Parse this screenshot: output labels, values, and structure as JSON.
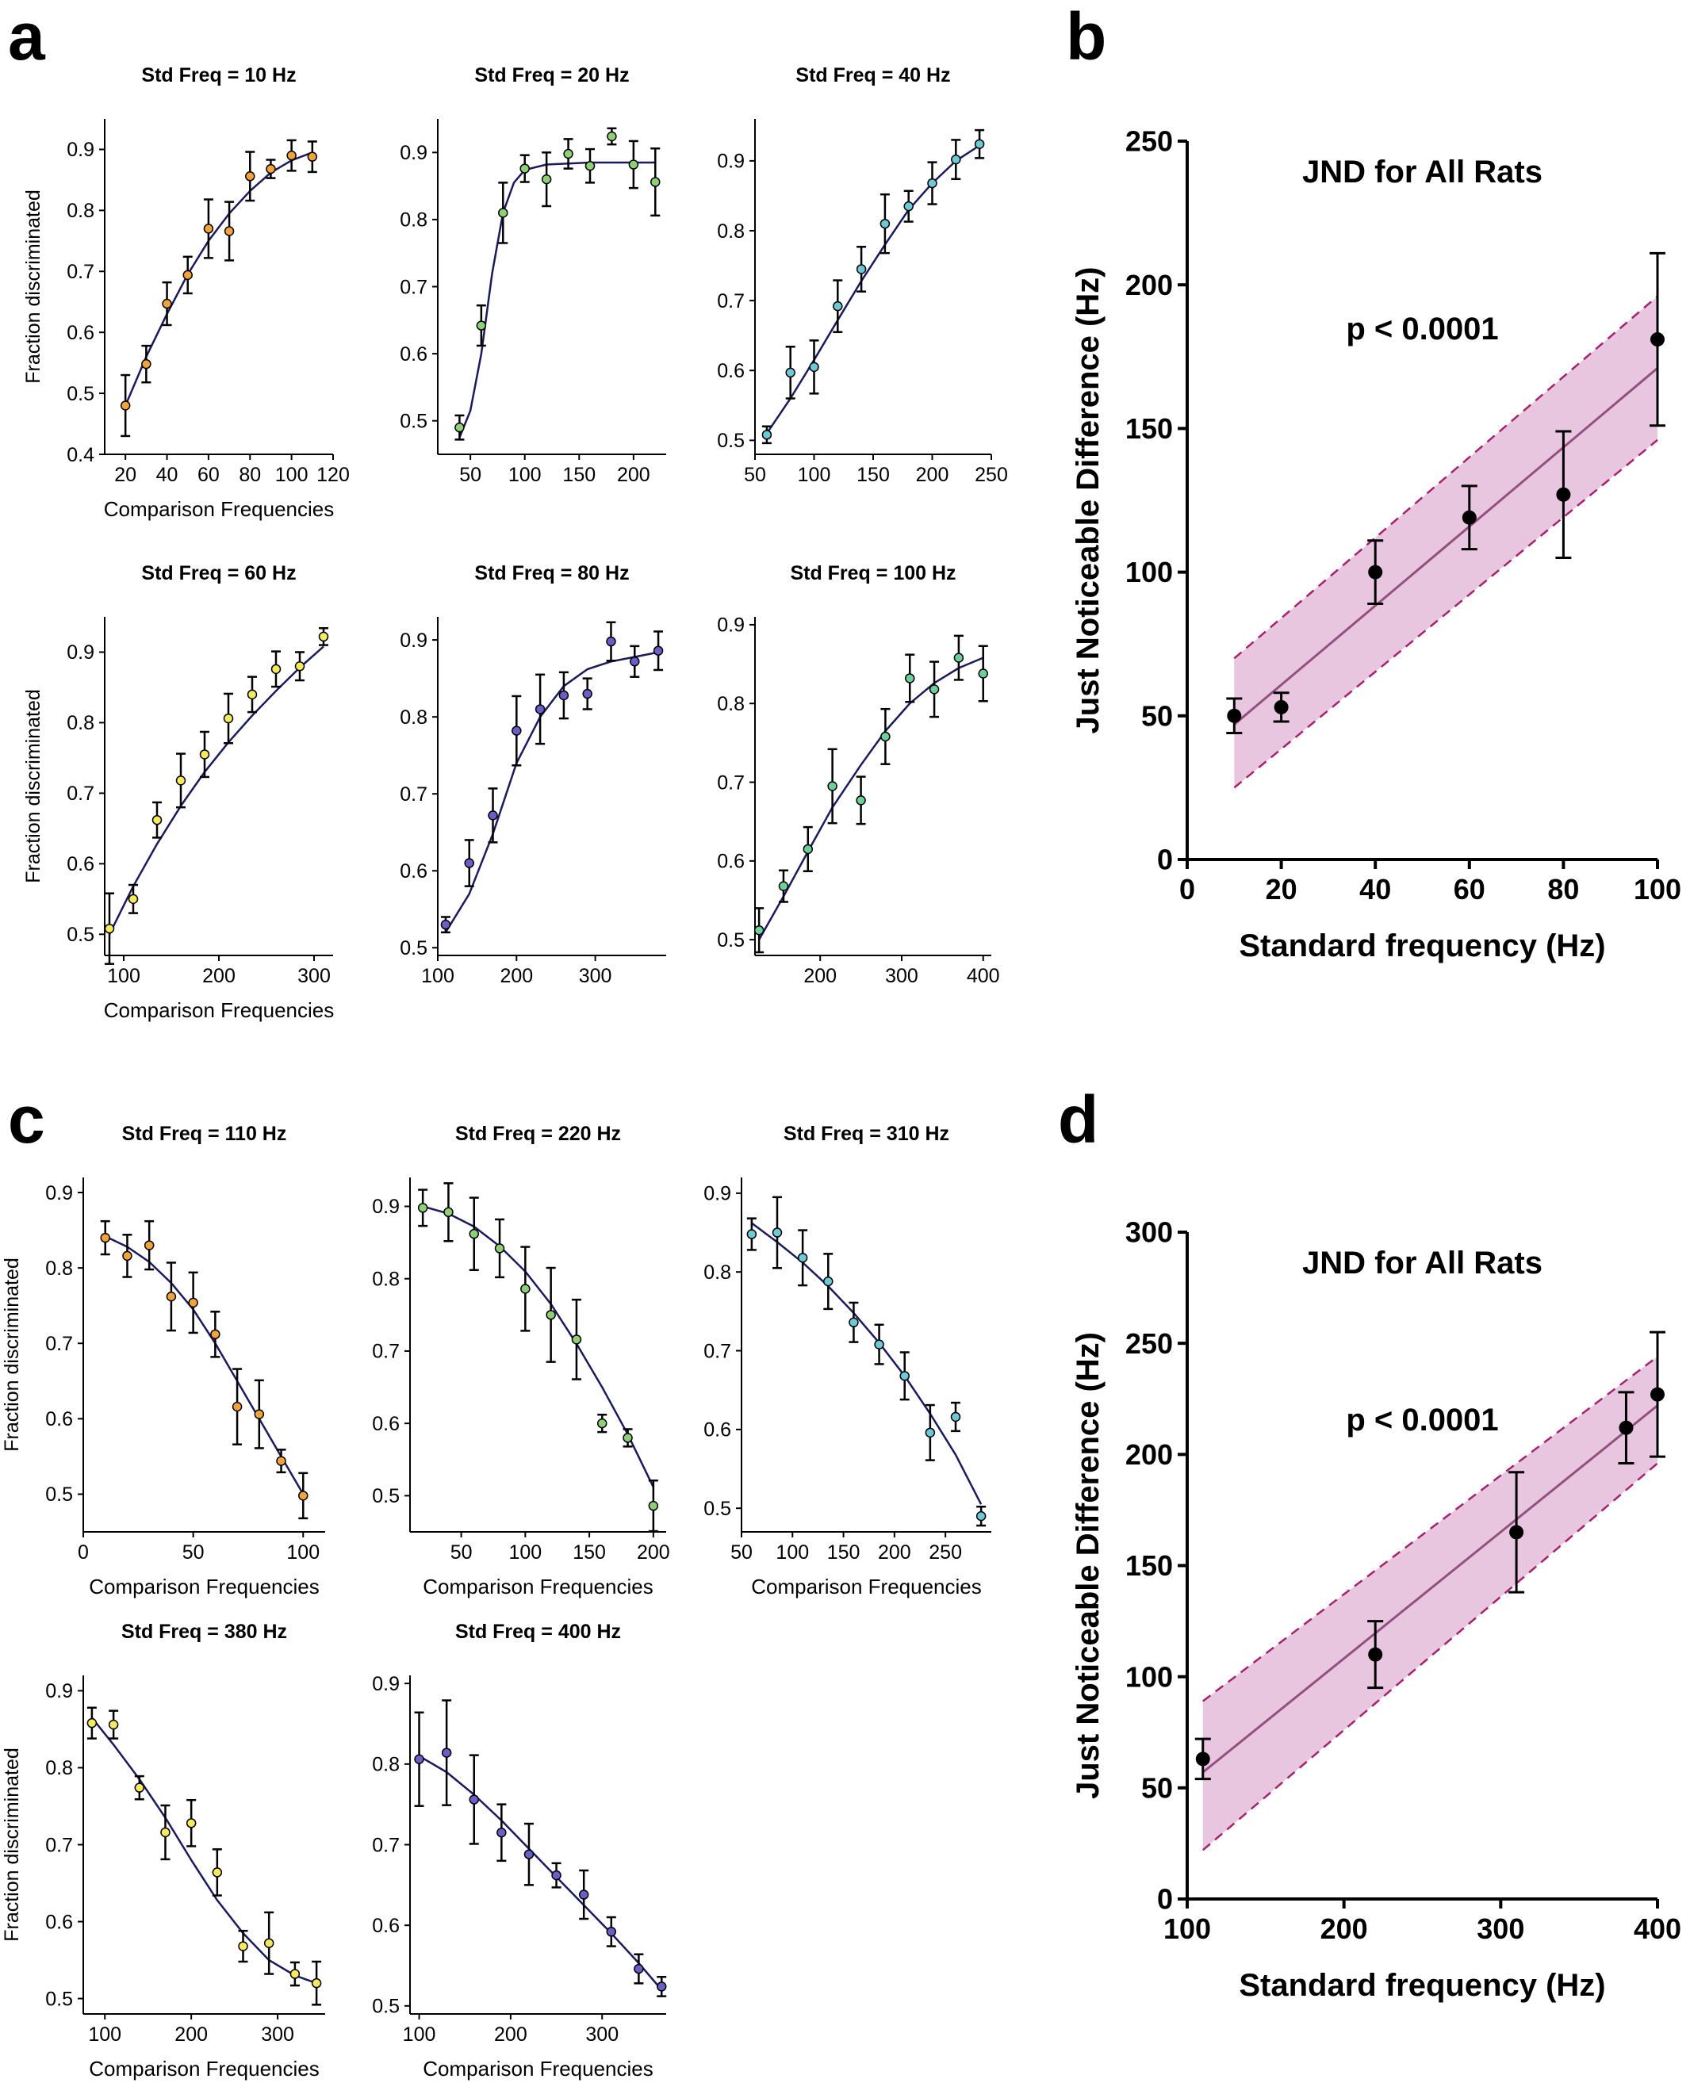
{
  "panel_labels": {
    "a": "a",
    "b": "b",
    "c": "c",
    "d": "d"
  },
  "chart_data": [
    {
      "panel": "a",
      "type": "scatter",
      "title": "Std Freq = 10 Hz",
      "xlabel": "Comparison Frequencies",
      "ylabel": "Fraction discriminated",
      "xlim": [
        10,
        120
      ],
      "ylim": [
        0.4,
        0.95
      ],
      "xticks": [
        20,
        40,
        60,
        80,
        100,
        120
      ],
      "yticks": [
        0.4,
        0.5,
        0.6,
        0.7,
        0.8,
        0.9
      ],
      "marker_color": "#f2a43a",
      "x": [
        20,
        30,
        40,
        50,
        60,
        70,
        80,
        90,
        100,
        110
      ],
      "y": [
        0.48,
        0.548,
        0.647,
        0.694,
        0.77,
        0.766,
        0.856,
        0.868,
        0.89,
        0.888
      ],
      "err": [
        0.05,
        0.03,
        0.035,
        0.03,
        0.048,
        0.048,
        0.04,
        0.015,
        0.025,
        0.025
      ],
      "fit": [
        [
          20,
          0.48
        ],
        [
          30,
          0.56
        ],
        [
          40,
          0.63
        ],
        [
          50,
          0.695
        ],
        [
          60,
          0.75
        ],
        [
          70,
          0.795
        ],
        [
          80,
          0.832
        ],
        [
          90,
          0.862
        ],
        [
          100,
          0.882
        ],
        [
          110,
          0.895
        ]
      ]
    },
    {
      "panel": "a",
      "type": "scatter",
      "title": "Std Freq = 20 Hz",
      "xlabel": "",
      "ylabel": "",
      "xlim": [
        20,
        230
      ],
      "ylim": [
        0.45,
        0.95
      ],
      "xticks": [
        50,
        100,
        150,
        200
      ],
      "yticks": [
        0.5,
        0.6,
        0.7,
        0.8,
        0.9
      ],
      "marker_color": "#8fcf78",
      "x": [
        40,
        60,
        80,
        100,
        120,
        140,
        160,
        180,
        200,
        220
      ],
      "y": [
        0.49,
        0.642,
        0.81,
        0.876,
        0.86,
        0.898,
        0.88,
        0.924,
        0.882,
        0.856
      ],
      "err": [
        0.018,
        0.03,
        0.045,
        0.02,
        0.04,
        0.022,
        0.025,
        0.012,
        0.035,
        0.05
      ],
      "fit": [
        [
          40,
          0.475
        ],
        [
          50,
          0.515
        ],
        [
          60,
          0.6
        ],
        [
          70,
          0.72
        ],
        [
          80,
          0.81
        ],
        [
          90,
          0.855
        ],
        [
          100,
          0.874
        ],
        [
          120,
          0.882
        ],
        [
          160,
          0.885
        ],
        [
          220,
          0.885
        ]
      ]
    },
    {
      "panel": "a",
      "type": "scatter",
      "title": "Std Freq = 40 Hz",
      "xlabel": "",
      "ylabel": "",
      "xlim": [
        50,
        250
      ],
      "ylim": [
        0.48,
        0.96
      ],
      "xticks": [
        50,
        100,
        150,
        200,
        250
      ],
      "yticks": [
        0.5,
        0.6,
        0.7,
        0.8,
        0.9
      ],
      "marker_color": "#6ec9d6",
      "x": [
        60,
        80,
        100,
        120,
        140,
        160,
        180,
        200,
        220,
        240
      ],
      "y": [
        0.508,
        0.597,
        0.605,
        0.692,
        0.745,
        0.81,
        0.835,
        0.868,
        0.902,
        0.924
      ],
      "err": [
        0.012,
        0.037,
        0.038,
        0.037,
        0.032,
        0.042,
        0.022,
        0.03,
        0.028,
        0.02
      ],
      "fit": [
        [
          60,
          0.51
        ],
        [
          80,
          0.56
        ],
        [
          100,
          0.615
        ],
        [
          120,
          0.672
        ],
        [
          140,
          0.728
        ],
        [
          160,
          0.78
        ],
        [
          180,
          0.83
        ],
        [
          200,
          0.868
        ],
        [
          220,
          0.9
        ],
        [
          240,
          0.922
        ]
      ]
    },
    {
      "panel": "a",
      "type": "scatter",
      "title": "Std Freq = 60 Hz",
      "xlabel": "Comparison Frequencies",
      "ylabel": "Fraction discriminated",
      "xlim": [
        80,
        320
      ],
      "ylim": [
        0.47,
        0.95
      ],
      "xticks": [
        100,
        200,
        300
      ],
      "yticks": [
        0.5,
        0.6,
        0.7,
        0.8,
        0.9
      ],
      "marker_color": "#f5e960",
      "x": [
        85,
        110,
        135,
        160,
        185,
        210,
        235,
        260,
        285,
        310
      ],
      "y": [
        0.508,
        0.55,
        0.662,
        0.718,
        0.755,
        0.806,
        0.84,
        0.876,
        0.88,
        0.922
      ],
      "err": [
        0.05,
        0.02,
        0.025,
        0.038,
        0.032,
        0.035,
        0.025,
        0.025,
        0.02,
        0.012
      ],
      "fit": [
        [
          85,
          0.5
        ],
        [
          110,
          0.568
        ],
        [
          135,
          0.628
        ],
        [
          160,
          0.682
        ],
        [
          185,
          0.73
        ],
        [
          210,
          0.772
        ],
        [
          235,
          0.81
        ],
        [
          260,
          0.845
        ],
        [
          285,
          0.878
        ],
        [
          310,
          0.908
        ]
      ]
    },
    {
      "panel": "a",
      "type": "scatter",
      "title": "Std Freq = 80 Hz",
      "xlabel": "",
      "ylabel": "",
      "xlim": [
        100,
        390
      ],
      "ylim": [
        0.49,
        0.93
      ],
      "xticks": [
        100,
        200,
        300
      ],
      "yticks": [
        0.5,
        0.6,
        0.7,
        0.8,
        0.9
      ],
      "marker_color": "#6a5ec9",
      "x": [
        110,
        140,
        170,
        200,
        230,
        260,
        290,
        320,
        350,
        380
      ],
      "y": [
        0.53,
        0.61,
        0.672,
        0.782,
        0.81,
        0.828,
        0.83,
        0.898,
        0.872,
        0.886
      ],
      "err": [
        0.01,
        0.03,
        0.035,
        0.045,
        0.045,
        0.03,
        0.02,
        0.025,
        0.02,
        0.025
      ],
      "fit": [
        [
          110,
          0.52
        ],
        [
          140,
          0.57
        ],
        [
          170,
          0.648
        ],
        [
          200,
          0.74
        ],
        [
          230,
          0.8
        ],
        [
          260,
          0.84
        ],
        [
          290,
          0.862
        ],
        [
          320,
          0.872
        ],
        [
          350,
          0.878
        ],
        [
          380,
          0.884
        ]
      ]
    },
    {
      "panel": "a",
      "type": "scatter",
      "title": "Std Freq = 100 Hz",
      "xlabel": "",
      "ylabel": "",
      "xlim": [
        120,
        410
      ],
      "ylim": [
        0.48,
        0.91
      ],
      "xticks": [
        200,
        300,
        400
      ],
      "yticks": [
        0.5,
        0.6,
        0.7,
        0.8,
        0.9
      ],
      "marker_color": "#6ccf9c",
      "x": [
        125,
        155,
        185,
        215,
        250,
        280,
        310,
        340,
        370,
        400
      ],
      "y": [
        0.512,
        0.568,
        0.615,
        0.695,
        0.677,
        0.758,
        0.832,
        0.818,
        0.858,
        0.838
      ],
      "err": [
        0.028,
        0.02,
        0.028,
        0.047,
        0.03,
        0.035,
        0.03,
        0.035,
        0.028,
        0.035
      ],
      "fit": [
        [
          125,
          0.5
        ],
        [
          155,
          0.555
        ],
        [
          185,
          0.612
        ],
        [
          215,
          0.668
        ],
        [
          250,
          0.722
        ],
        [
          280,
          0.765
        ],
        [
          310,
          0.8
        ],
        [
          340,
          0.826
        ],
        [
          370,
          0.845
        ],
        [
          400,
          0.858
        ]
      ]
    },
    {
      "panel": "b",
      "type": "scatter",
      "title": "JND for All Rats",
      "annotation": "p < 0.0001",
      "xlabel": "Standard frequency (Hz)",
      "ylabel": "Just Noticeable Difference (Hz)",
      "xlim": [
        0,
        100
      ],
      "ylim": [
        0,
        250
      ],
      "xticks": [
        0,
        20,
        40,
        60,
        80,
        100
      ],
      "yticks": [
        0,
        50,
        100,
        150,
        200,
        250
      ],
      "x": [
        10,
        20,
        40,
        60,
        80,
        100
      ],
      "y": [
        50,
        53,
        100,
        119,
        127,
        181
      ],
      "err": [
        6,
        5,
        11,
        11,
        22,
        30
      ],
      "fit_line": [
        [
          10,
          47
        ],
        [
          100,
          171
        ]
      ],
      "ci_upper": [
        [
          10,
          70
        ],
        [
          100,
          196
        ]
      ],
      "ci_lower": [
        [
          10,
          25
        ],
        [
          100,
          146
        ]
      ],
      "band_color": "#e8c6df",
      "line_color": "#93507f",
      "dash_color": "#a6226f"
    },
    {
      "panel": "c",
      "type": "scatter",
      "title": "Std Freq = 110 Hz",
      "xlabel": "Comparison Frequencies",
      "ylabel": "Fraction discriminated",
      "xlim": [
        0,
        110
      ],
      "ylim": [
        0.45,
        0.92
      ],
      "xticks": [
        0,
        50,
        100
      ],
      "yticks": [
        0.5,
        0.6,
        0.7,
        0.8,
        0.9
      ],
      "marker_color": "#f2a43a",
      "x": [
        10,
        20,
        30,
        40,
        50,
        60,
        70,
        80,
        90,
        100
      ],
      "y": [
        0.84,
        0.816,
        0.83,
        0.762,
        0.754,
        0.712,
        0.616,
        0.606,
        0.544,
        0.498
      ],
      "err": [
        0.022,
        0.028,
        0.032,
        0.045,
        0.04,
        0.03,
        0.05,
        0.045,
        0.015,
        0.03
      ],
      "fit": [
        [
          10,
          0.842
        ],
        [
          20,
          0.828
        ],
        [
          30,
          0.808
        ],
        [
          40,
          0.78
        ],
        [
          50,
          0.745
        ],
        [
          60,
          0.7
        ],
        [
          70,
          0.65
        ],
        [
          80,
          0.6
        ],
        [
          90,
          0.55
        ],
        [
          100,
          0.5
        ]
      ]
    },
    {
      "panel": "c",
      "type": "scatter",
      "title": "Std Freq = 220 Hz",
      "xlabel": "Comparison Frequencies",
      "ylabel": "",
      "xlim": [
        10,
        210
      ],
      "ylim": [
        0.45,
        0.94
      ],
      "xticks": [
        50,
        100,
        150,
        200
      ],
      "yticks": [
        0.5,
        0.6,
        0.7,
        0.8,
        0.9
      ],
      "marker_color": "#8fcf78",
      "x": [
        20,
        40,
        60,
        80,
        100,
        120,
        140,
        160,
        180,
        200
      ],
      "y": [
        0.898,
        0.892,
        0.862,
        0.842,
        0.786,
        0.75,
        0.716,
        0.6,
        0.58,
        0.486
      ],
      "err": [
        0.025,
        0.04,
        0.05,
        0.04,
        0.058,
        0.065,
        0.055,
        0.012,
        0.012,
        0.035
      ],
      "fit": [
        [
          20,
          0.9
        ],
        [
          40,
          0.89
        ],
        [
          60,
          0.872
        ],
        [
          80,
          0.845
        ],
        [
          100,
          0.81
        ],
        [
          120,
          0.765
        ],
        [
          140,
          0.71
        ],
        [
          160,
          0.65
        ],
        [
          180,
          0.585
        ],
        [
          200,
          0.512
        ]
      ]
    },
    {
      "panel": "c",
      "type": "scatter",
      "title": "Std Freq = 310 Hz",
      "xlabel": "Comparison Frequencies",
      "ylabel": "",
      "xlim": [
        50,
        295
      ],
      "ylim": [
        0.47,
        0.92
      ],
      "xticks": [
        50,
        100,
        150,
        200,
        250
      ],
      "yticks": [
        0.5,
        0.6,
        0.7,
        0.8,
        0.9
      ],
      "marker_color": "#6ec9d6",
      "x": [
        60,
        85,
        110,
        135,
        160,
        185,
        210,
        235,
        260,
        285
      ],
      "y": [
        0.848,
        0.85,
        0.818,
        0.788,
        0.736,
        0.708,
        0.668,
        0.596,
        0.616,
        0.49
      ],
      "err": [
        0.02,
        0.045,
        0.035,
        0.035,
        0.025,
        0.025,
        0.03,
        0.035,
        0.018,
        0.012
      ],
      "fit": [
        [
          60,
          0.862
        ],
        [
          85,
          0.838
        ],
        [
          110,
          0.812
        ],
        [
          135,
          0.782
        ],
        [
          160,
          0.748
        ],
        [
          185,
          0.71
        ],
        [
          210,
          0.668
        ],
        [
          235,
          0.62
        ],
        [
          260,
          0.568
        ],
        [
          285,
          0.505
        ]
      ]
    },
    {
      "panel": "c",
      "type": "scatter",
      "title": "Std Freq = 380 Hz",
      "xlabel": "Comparison Frequencies",
      "ylabel": "Fraction discriminated",
      "xlim": [
        75,
        355
      ],
      "ylim": [
        0.48,
        0.92
      ],
      "xticks": [
        100,
        200,
        300
      ],
      "yticks": [
        0.5,
        0.6,
        0.7,
        0.8,
        0.9
      ],
      "marker_color": "#f5e960",
      "x": [
        85,
        110,
        140,
        170,
        200,
        230,
        260,
        290,
        320,
        345
      ],
      "y": [
        0.858,
        0.856,
        0.774,
        0.716,
        0.728,
        0.664,
        0.568,
        0.572,
        0.532,
        0.52
      ],
      "err": [
        0.02,
        0.018,
        0.015,
        0.035,
        0.03,
        0.03,
        0.02,
        0.04,
        0.015,
        0.028
      ],
      "fit": [
        [
          85,
          0.865
        ],
        [
          110,
          0.83
        ],
        [
          140,
          0.785
        ],
        [
          170,
          0.735
        ],
        [
          200,
          0.68
        ],
        [
          230,
          0.628
        ],
        [
          260,
          0.585
        ],
        [
          290,
          0.55
        ],
        [
          320,
          0.53
        ],
        [
          345,
          0.52
        ]
      ]
    },
    {
      "panel": "c",
      "type": "scatter",
      "title": "Std Freq = 400 Hz",
      "xlabel": "Comparison Frequencies",
      "ylabel": "",
      "xlim": [
        90,
        370
      ],
      "ylim": [
        0.49,
        0.91
      ],
      "xticks": [
        100,
        200,
        300
      ],
      "yticks": [
        0.5,
        0.6,
        0.7,
        0.8,
        0.9
      ],
      "marker_color": "#6a5ec9",
      "x": [
        100,
        130,
        160,
        190,
        220,
        250,
        280,
        310,
        340,
        365
      ],
      "y": [
        0.806,
        0.814,
        0.756,
        0.715,
        0.688,
        0.662,
        0.638,
        0.592,
        0.546,
        0.524
      ],
      "err": [
        0.058,
        0.065,
        0.055,
        0.035,
        0.038,
        0.015,
        0.03,
        0.018,
        0.018,
        0.012
      ],
      "fit": [
        [
          100,
          0.81
        ],
        [
          130,
          0.79
        ],
        [
          160,
          0.762
        ],
        [
          190,
          0.73
        ],
        [
          220,
          0.695
        ],
        [
          250,
          0.66
        ],
        [
          280,
          0.625
        ],
        [
          310,
          0.59
        ],
        [
          340,
          0.553
        ],
        [
          365,
          0.52
        ]
      ]
    },
    {
      "panel": "d",
      "type": "scatter",
      "title": "JND for All Rats",
      "annotation": "p < 0.0001",
      "xlabel": "Standard frequency (Hz)",
      "ylabel": "Just Noticeable Difference (Hz)",
      "xlim": [
        100,
        400
      ],
      "ylim": [
        0,
        300
      ],
      "xticks": [
        100,
        200,
        300,
        400
      ],
      "yticks": [
        0,
        50,
        100,
        150,
        200,
        250,
        300
      ],
      "x": [
        110,
        220,
        310,
        380,
        400
      ],
      "y": [
        63,
        110,
        165,
        212,
        227
      ],
      "err": [
        9,
        15,
        27,
        16,
        28
      ],
      "fit_line": [
        [
          110,
          57
        ],
        [
          400,
          222
        ]
      ],
      "ci_upper": [
        [
          110,
          89
        ],
        [
          400,
          244
        ]
      ],
      "ci_lower": [
        [
          110,
          22
        ],
        [
          400,
          196
        ]
      ],
      "band_color": "#e8c6df",
      "line_color": "#93507f",
      "dash_color": "#a6226f"
    }
  ]
}
